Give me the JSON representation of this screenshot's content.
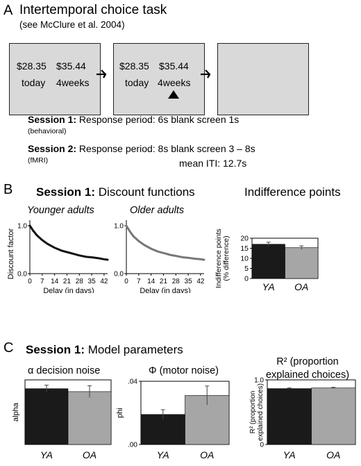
{
  "panelA": {
    "letter": "A",
    "title": "Intertemporal choice task",
    "subtitle": "(see McClure et al. 2004)",
    "screens": [
      {
        "amount1": "$28.35",
        "amount2": "$35.44",
        "label1": "today",
        "label2": "4weeks",
        "marker": false
      },
      {
        "amount1": "$28.35",
        "amount2": "$35.44",
        "label1": "today",
        "label2": "4weeks",
        "marker": true
      },
      {
        "amount1": "",
        "amount2": "",
        "label1": "",
        "label2": "",
        "marker": false
      }
    ],
    "session1": {
      "bold": "Session 1:",
      "text": " Response period: 6s blank screen 1s",
      "note": "(behavioral)"
    },
    "session2": {
      "bold": "Session 2:",
      "text": " Response period: 8s blank screen 3 – 8s",
      "note": "(fMRI)",
      "iti": "mean ITI: 12.7s"
    }
  },
  "panelB": {
    "letter": "B",
    "title_bold": "Session 1:",
    "title_rest": " Discount functions",
    "right_title": "Indifference points",
    "young_title": "Younger adults",
    "old_title": "Older adults",
    "colors": {
      "young": "#111111",
      "old": "#777777",
      "bar_dark": "#1a1a1a",
      "bar_light": "#a6a6a6"
    }
  },
  "panelC": {
    "letter": "C",
    "title_bold": "Session 1:",
    "title_rest": " Model parameters",
    "alpha_title": "α decision noise",
    "phi_title": "Φ (motor noise)",
    "r2_title_line1": "R² (proportion",
    "r2_title_line2": "explained choices)"
  },
  "chart_data": [
    {
      "type": "line",
      "title": "Younger adults",
      "xlabel": "Delay (in days)",
      "ylabel": "Discount factor",
      "xlim": [
        0,
        44
      ],
      "ylim": [
        0,
        1
      ],
      "xticks": [
        "0",
        "7",
        "14",
        "21",
        "28",
        "35",
        "42"
      ],
      "yticks": [
        "0.0",
        "1.0"
      ],
      "series": [
        {
          "name": "Younger adults",
          "x": [
            0,
            2,
            4,
            7,
            10,
            14,
            18,
            21,
            25,
            28,
            32,
            35,
            39,
            42,
            44
          ],
          "y": [
            1.0,
            0.89,
            0.8,
            0.7,
            0.62,
            0.54,
            0.48,
            0.45,
            0.41,
            0.38,
            0.35,
            0.34,
            0.32,
            0.3,
            0.29
          ]
        }
      ]
    },
    {
      "type": "line",
      "title": "Older adults",
      "xlabel": "Delay (in days)",
      "ylabel": "",
      "xlim": [
        0,
        44
      ],
      "ylim": [
        0,
        1
      ],
      "xticks": [
        "0",
        "7",
        "14",
        "21",
        "28",
        "35",
        "42"
      ],
      "yticks": [
        "0.0",
        "1.0"
      ],
      "series": [
        {
          "name": "Older adults",
          "x": [
            0,
            2,
            4,
            7,
            10,
            14,
            18,
            21,
            25,
            28,
            32,
            35,
            39,
            42,
            44
          ],
          "y": [
            1.0,
            0.88,
            0.78,
            0.68,
            0.6,
            0.52,
            0.46,
            0.43,
            0.39,
            0.37,
            0.34,
            0.33,
            0.31,
            0.3,
            0.29
          ]
        }
      ]
    },
    {
      "type": "bar",
      "title": "Indifference points",
      "ylabel": "Indifference points (% difference)",
      "categories": [
        "YA",
        "OA"
      ],
      "values": [
        17.0,
        15.3
      ],
      "errors": [
        1.0,
        0.9
      ],
      "ylim": [
        0,
        20
      ],
      "yticks": [
        "0",
        "5",
        "10",
        "15",
        "20"
      ]
    },
    {
      "type": "bar",
      "title": "α decision noise",
      "ylabel": "alpha",
      "categories": [
        "YA",
        "OA"
      ],
      "values": [
        0.95,
        0.9
      ],
      "errors": [
        0.06,
        0.1
      ],
      "ylim": [
        0,
        1.1
      ],
      "yticks": []
    },
    {
      "type": "bar",
      "title": "Φ (motor noise)",
      "ylabel": "phi",
      "categories": [
        "YA",
        "OA"
      ],
      "values": [
        0.019,
        0.031
      ],
      "errors": [
        0.003,
        0.006
      ],
      "ylim": [
        0,
        0.04
      ],
      "yticks": [
        ".00",
        ".04"
      ]
    },
    {
      "type": "bar",
      "title": "R² (proportion explained choices)",
      "ylabel": "R² (proportion explained choices)",
      "categories": [
        "YA",
        "OA"
      ],
      "values": [
        0.865,
        0.875
      ],
      "errors": [
        0.01,
        0.01
      ],
      "ylim": [
        0,
        1.0
      ],
      "yticks": [
        "0",
        "1.0"
      ]
    }
  ]
}
